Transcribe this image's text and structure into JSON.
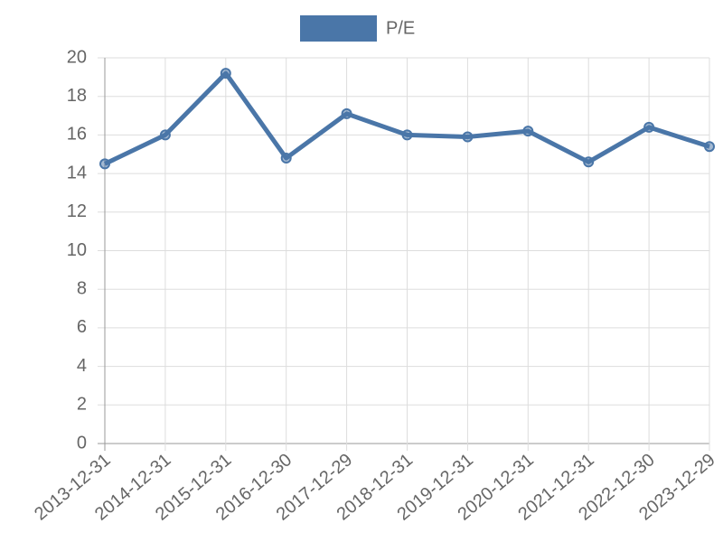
{
  "chart_data": {
    "type": "line",
    "categories": [
      "2013-12-31",
      "2014-12-31",
      "2015-12-31",
      "2016-12-30",
      "2017-12-29",
      "2018-12-31",
      "2019-12-31",
      "2020-12-31",
      "2021-12-31",
      "2022-12-30",
      "2023-12-29"
    ],
    "series": [
      {
        "name": "P/E",
        "color": "#4a76a8",
        "values": [
          14.5,
          16.0,
          19.2,
          14.8,
          17.1,
          16.0,
          15.9,
          16.2,
          14.6,
          16.4,
          15.4
        ]
      }
    ],
    "ylim": [
      0,
      20
    ],
    "yticks": [
      0,
      2,
      4,
      6,
      8,
      10,
      12,
      14,
      16,
      18,
      20
    ],
    "grid": true,
    "legend": "top"
  }
}
